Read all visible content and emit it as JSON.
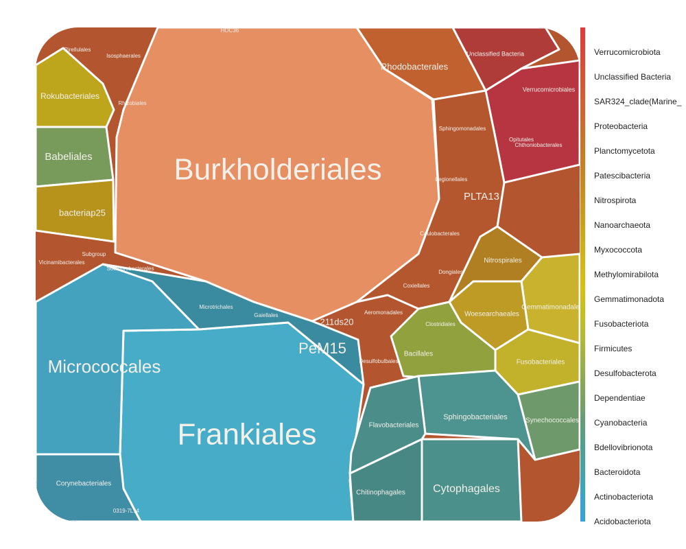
{
  "cells": [
    {
      "label": "Burkholderiales",
      "color": "#e68f62"
    },
    {
      "label": "Frankiales",
      "color": "#47acc7"
    },
    {
      "label": "Micrococcales",
      "color": "#45a2bf"
    },
    {
      "label": "Corynebacteriales",
      "color": "#3f8ea6"
    },
    {
      "label": "PeM15",
      "color": "#3a8aa0"
    },
    {
      "label": "Babeliales",
      "color": "#789a5a"
    },
    {
      "label": "Rokubacteriales",
      "color": "#bea61c"
    },
    {
      "label": "bacteriap25",
      "color": "#b7931c"
    },
    {
      "label": "Rhodobacterales",
      "color": "#c0612f"
    },
    {
      "label": "Unclassified Bacteria",
      "color": "#b03c3a"
    },
    {
      "label": "Verrucomicrobiales",
      "color": "#b73541"
    },
    {
      "label": "PLTA13",
      "color": "#b5572e"
    },
    {
      "label": "Nitrospirales",
      "color": "#b07f22"
    },
    {
      "label": "Gemmatimonadales",
      "color": "#c9b22d"
    },
    {
      "label": "Woesearchaeales",
      "color": "#bd9b24"
    },
    {
      "label": "Fusobacteriales",
      "color": "#c2b12b"
    },
    {
      "label": "Bacillales",
      "color": "#90a13e"
    },
    {
      "label": "Synechococcales",
      "color": "#6e9a6b"
    },
    {
      "label": "Cytophagales",
      "color": "#4b908b"
    },
    {
      "label": "Sphingobacteriales",
      "color": "#4d938f"
    },
    {
      "label": "Flavobacteriales",
      "color": "#4a8d89"
    },
    {
      "label": "Chitinophagales",
      "color": "#478784"
    }
  ],
  "labels": [
    "Pirellulales",
    "Isosphaerales",
    "HOC36",
    "Rhizobiales",
    "Opitutales",
    "Chthoniobacterales",
    "Sphingomonadales",
    "Legionellales",
    "Caulobacterales",
    "Dongiales",
    "Coxiellales",
    "Aeromonadales",
    "211ds20",
    "Clostridiales",
    "Desulfobulbales",
    "Vicinamibacterales",
    "Subgroup",
    "Solirubrobacterales",
    "Microtrichales",
    "Gaiellales",
    "0319-7L14"
  ],
  "legend": {
    "items": [
      {
        "label": "Verrucomicrobiota",
        "color": "#e03a3a"
      },
      {
        "label": "Unclassified Bacteria",
        "color": "#d94837"
      },
      {
        "label": "SAR324_clade(Marine_",
        "color": "#d35634"
      },
      {
        "label": "Proteobacteria",
        "color": "#cf6330"
      },
      {
        "label": "Planctomycetota",
        "color": "#cb702c"
      },
      {
        "label": "Patescibacteria",
        "color": "#c87d28"
      },
      {
        "label": "Nitrospirota",
        "color": "#c68a24"
      },
      {
        "label": "Nanoarchaeota",
        "color": "#c89920"
      },
      {
        "label": "Myxococcota",
        "color": "#cca81b"
      },
      {
        "label": "Methylomirabilota",
        "color": "#d2b617"
      },
      {
        "label": "Gemmatimonadota",
        "color": "#d4c113"
      },
      {
        "label": "Fusobacteriota",
        "color": "#c6bf22"
      },
      {
        "label": "Firmicutes",
        "color": "#b2b838"
      },
      {
        "label": "Desulfobacterota",
        "color": "#9aae4c"
      },
      {
        "label": "Dependentiae",
        "color": "#82a45f"
      },
      {
        "label": "Cyanobacteria",
        "color": "#6a9c73"
      },
      {
        "label": "Bdellovibrionota",
        "color": "#54a08c"
      },
      {
        "label": "Bacteroidota",
        "color": "#45a3a8"
      },
      {
        "label": "Actinobacteriota",
        "color": "#3ca4c4"
      },
      {
        "label": "Acidobacteriota",
        "color": "#36a2dc"
      }
    ]
  }
}
